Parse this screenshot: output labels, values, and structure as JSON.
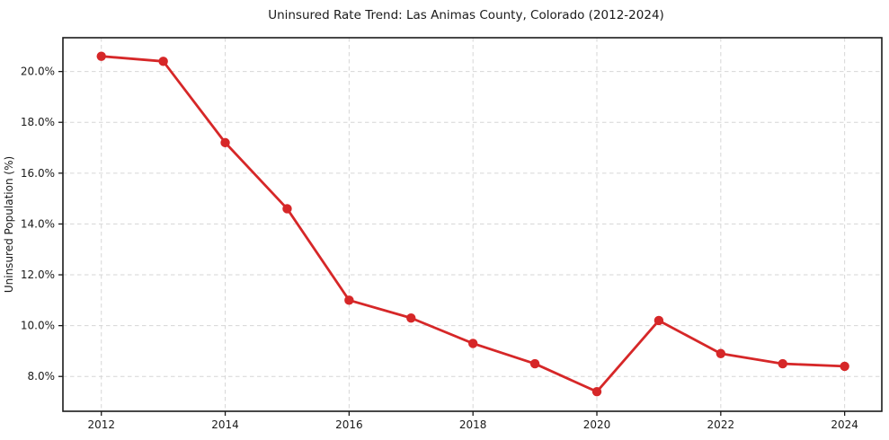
{
  "chart_data": {
    "type": "line",
    "title": "Uninsured Rate Trend: Las Animas County, Colorado (2012-2024)",
    "xlabel": "",
    "ylabel": "Uninsured Population (%)",
    "x": [
      2012,
      2013,
      2014,
      2015,
      2016,
      2017,
      2018,
      2019,
      2020,
      2021,
      2022,
      2023,
      2024
    ],
    "values": [
      20.6,
      20.4,
      17.2,
      14.6,
      11.0,
      10.3,
      9.3,
      8.5,
      7.4,
      10.2,
      8.9,
      8.5,
      8.4
    ],
    "x_ticks": [
      2012,
      2014,
      2016,
      2018,
      2020,
      2022,
      2024
    ],
    "x_tick_labels": [
      "2012",
      "2014",
      "2016",
      "2018",
      "2020",
      "2022",
      "2024"
    ],
    "y_ticks": [
      8,
      10,
      12,
      14,
      16,
      18,
      20
    ],
    "y_tick_labels": [
      "8.0%",
      "10.0%",
      "12.0%",
      "14.0%",
      "16.0%",
      "18.0%",
      "20.0%"
    ],
    "xlim": [
      2011.38,
      2024.6
    ],
    "ylim": [
      6.63,
      21.33
    ],
    "grid": true,
    "legend_position": "none",
    "colors": {
      "line": "#d62728",
      "marker": "#d62728",
      "gridline": "#d6d6d6",
      "spine": "#1a1a1a",
      "background": "#ffffff"
    }
  }
}
